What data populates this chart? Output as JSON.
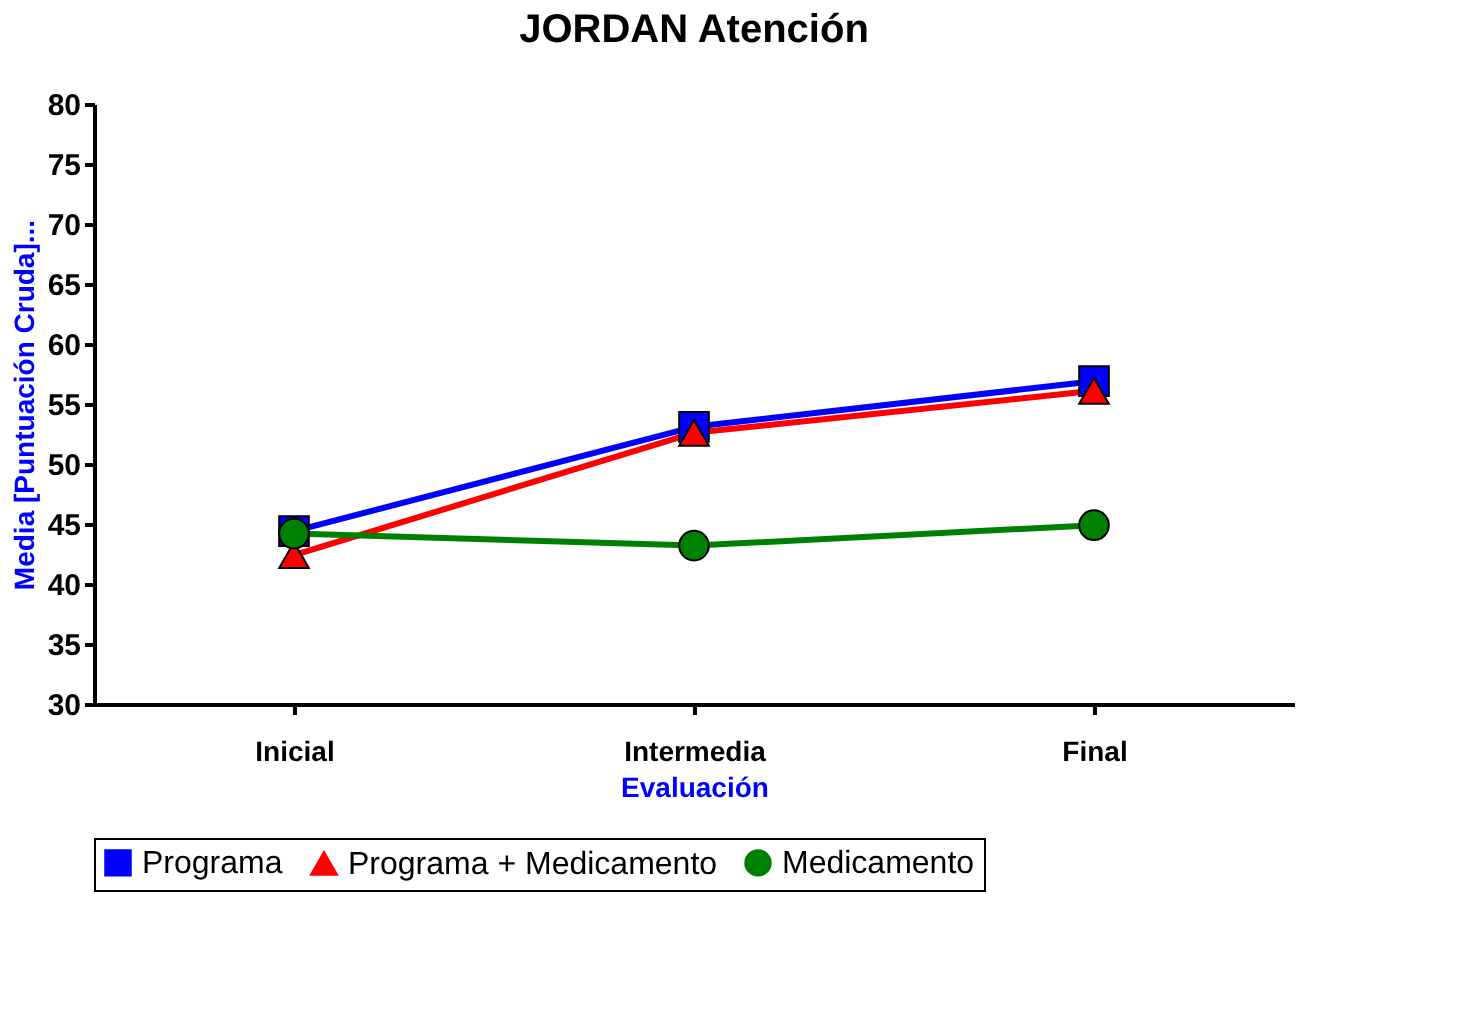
{
  "chart_data": {
    "type": "line",
    "title": "JORDAN Atención",
    "xlabel": "Evaluación",
    "ylabel": "Media [Puntuación Cruda]...",
    "categories": [
      "Inicial",
      "Intermedia",
      "Final"
    ],
    "series": [
      {
        "name": "Programa",
        "color": "#0000ff",
        "marker": "square",
        "values": [
          44.4,
          53.1,
          56.9
        ]
      },
      {
        "name": "Programa + Medicamento",
        "color": "#ff0000",
        "marker": "triangle",
        "values": [
          42.4,
          52.6,
          56.1
        ]
      },
      {
        "name": "Medicamento",
        "color": "#008000",
        "marker": "circle",
        "values": [
          44.2,
          43.2,
          44.9
        ]
      }
    ],
    "ylim": [
      30,
      80
    ],
    "yticks": [
      30,
      35,
      40,
      45,
      50,
      55,
      60,
      65,
      70,
      75,
      80
    ],
    "grid": false,
    "legend": "bottom",
    "line_style": "solid"
  }
}
